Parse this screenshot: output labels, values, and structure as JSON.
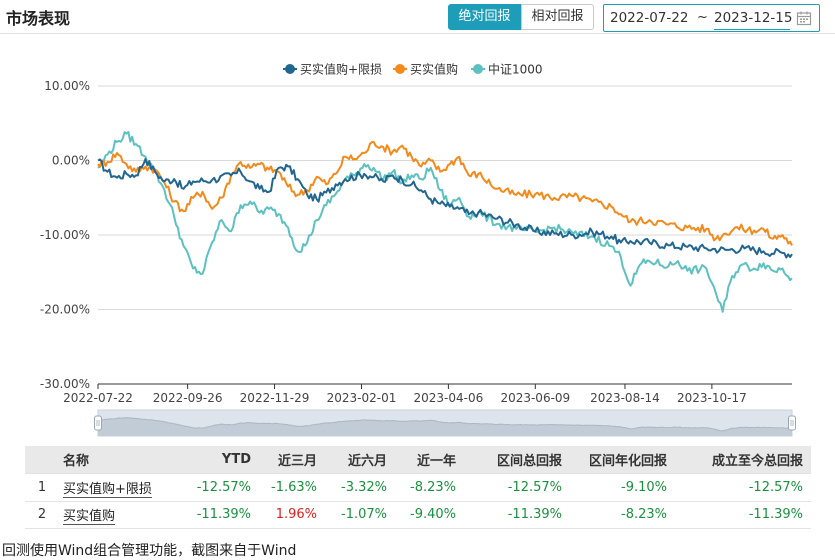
{
  "header": {
    "title": "市场表现"
  },
  "toggle": {
    "absolute_label": "绝对回报",
    "relative_label": "相对回报",
    "active": "absolute"
  },
  "date_range": {
    "start": "2022-07-22",
    "separator": "~",
    "end": "2023-12-15"
  },
  "colors": {
    "accent": "#1e9db8",
    "series1": "#22668f",
    "series2": "#f28a1c",
    "series3": "#5cc1c0",
    "negative": "#1b9040",
    "positive": "#e0201d"
  },
  "chart_data": {
    "type": "line",
    "title": "",
    "xlabel": "",
    "ylabel": "",
    "ylim": [
      -30,
      10
    ],
    "yticks": [
      10,
      0,
      -10,
      -20,
      -30
    ],
    "ytick_labels": [
      "10.00%",
      "0.00%",
      "-10.00%",
      "-20.00%",
      "-30.00%"
    ],
    "xtick_labels": [
      "2022-07-22",
      "2022-09-26",
      "2022-11-29",
      "2023-02-01",
      "2023-04-06",
      "2023-06-09",
      "2023-08-14",
      "2023-10-17"
    ],
    "xticks": [
      "2022-07-22",
      "2022-09-26",
      "2022-11-29",
      "2023-02-01",
      "2023-04-06",
      "2023-06-09",
      "2023-08-14",
      "2023-10-17"
    ],
    "xlim": [
      "2022-07-22",
      "2023-12-15"
    ],
    "legend_position": "top-center",
    "grid": "horizontal",
    "series": [
      {
        "name": "买实值购+限损",
        "color": "#22668f",
        "points": [
          [
            "2022-07-22",
            0.0
          ],
          [
            "2022-07-29",
            -1.5
          ],
          [
            "2022-08-05",
            -2.3
          ],
          [
            "2022-08-12",
            -1.8
          ],
          [
            "2022-08-19",
            -2.0
          ],
          [
            "2022-08-26",
            0.2
          ],
          [
            "2022-09-02",
            -1.5
          ],
          [
            "2022-09-09",
            -2.8
          ],
          [
            "2022-09-16",
            -2.5
          ],
          [
            "2022-09-23",
            -3.8
          ],
          [
            "2022-09-30",
            -2.8
          ],
          [
            "2022-10-14",
            -2.6
          ],
          [
            "2022-10-28",
            -2.0
          ],
          [
            "2022-11-04",
            -1.5
          ],
          [
            "2022-11-11",
            -2.8
          ],
          [
            "2022-11-18",
            -3.8
          ],
          [
            "2022-11-25",
            -4.2
          ],
          [
            "2022-12-02",
            -1.0
          ],
          [
            "2022-12-09",
            -0.8
          ],
          [
            "2022-12-16",
            -2.5
          ],
          [
            "2022-12-23",
            -4.6
          ],
          [
            "2022-12-30",
            -5.2
          ],
          [
            "2023-01-06",
            -4.3
          ],
          [
            "2023-01-13",
            -3.2
          ],
          [
            "2023-01-20",
            -2.5
          ],
          [
            "2023-02-03",
            -1.8
          ],
          [
            "2023-02-10",
            -2.2
          ],
          [
            "2023-02-17",
            -2.8
          ],
          [
            "2023-02-24",
            -2.0
          ],
          [
            "2023-03-03",
            -2.6
          ],
          [
            "2023-03-10",
            -3.2
          ],
          [
            "2023-03-17",
            -4.0
          ],
          [
            "2023-03-24",
            -5.2
          ],
          [
            "2023-03-31",
            -5.8
          ],
          [
            "2023-04-07",
            -6.2
          ],
          [
            "2023-04-14",
            -6.5
          ],
          [
            "2023-04-21",
            -7.2
          ],
          [
            "2023-04-28",
            -7.0
          ],
          [
            "2023-05-12",
            -7.8
          ],
          [
            "2023-05-26",
            -8.6
          ],
          [
            "2023-06-09",
            -9.5
          ],
          [
            "2023-06-23",
            -9.8
          ],
          [
            "2023-07-07",
            -10.0
          ],
          [
            "2023-07-21",
            -9.6
          ],
          [
            "2023-08-04",
            -10.2
          ],
          [
            "2023-08-11",
            -11.0
          ],
          [
            "2023-08-18",
            -10.8
          ],
          [
            "2023-09-01",
            -11.0
          ],
          [
            "2023-09-15",
            -11.4
          ],
          [
            "2023-09-29",
            -11.6
          ],
          [
            "2023-10-13",
            -11.8
          ],
          [
            "2023-10-27",
            -12.0
          ],
          [
            "2023-11-10",
            -11.8
          ],
          [
            "2023-11-24",
            -12.2
          ],
          [
            "2023-12-08",
            -12.4
          ],
          [
            "2023-12-15",
            -12.57
          ]
        ]
      },
      {
        "name": "买实值购",
        "color": "#f28a1c",
        "points": [
          [
            "2022-07-22",
            -0.5
          ],
          [
            "2022-07-29",
            -0.2
          ],
          [
            "2022-08-05",
            1.0
          ],
          [
            "2022-08-12",
            -0.5
          ],
          [
            "2022-08-19",
            -1.5
          ],
          [
            "2022-08-26",
            -0.8
          ],
          [
            "2022-09-02",
            -1.2
          ],
          [
            "2022-09-09",
            -3.0
          ],
          [
            "2022-09-16",
            -5.5
          ],
          [
            "2022-09-23",
            -6.8
          ],
          [
            "2022-09-30",
            -5.0
          ],
          [
            "2022-10-07",
            -4.2
          ],
          [
            "2022-10-14",
            -6.5
          ],
          [
            "2022-10-21",
            -5.0
          ],
          [
            "2022-10-28",
            -2.0
          ],
          [
            "2022-11-04",
            -0.2
          ],
          [
            "2022-11-11",
            -1.0
          ],
          [
            "2022-11-18",
            -0.5
          ],
          [
            "2022-11-25",
            -1.2
          ],
          [
            "2022-12-02",
            -1.5
          ],
          [
            "2022-12-09",
            -3.5
          ],
          [
            "2022-12-16",
            -4.6
          ],
          [
            "2022-12-23",
            -4.0
          ],
          [
            "2022-12-30",
            -2.2
          ],
          [
            "2023-01-06",
            -3.2
          ],
          [
            "2023-01-13",
            -1.8
          ],
          [
            "2023-01-20",
            0.5
          ],
          [
            "2023-01-27",
            0.2
          ],
          [
            "2023-02-03",
            1.0
          ],
          [
            "2023-02-10",
            2.5
          ],
          [
            "2023-02-17",
            1.8
          ],
          [
            "2023-02-24",
            1.2
          ],
          [
            "2023-03-03",
            2.0
          ],
          [
            "2023-03-10",
            0.5
          ],
          [
            "2023-03-17",
            -0.8
          ],
          [
            "2023-03-24",
            0.0
          ],
          [
            "2023-03-31",
            -1.5
          ],
          [
            "2023-04-07",
            -0.5
          ],
          [
            "2023-04-14",
            0.5
          ],
          [
            "2023-04-21",
            -2.0
          ],
          [
            "2023-04-28",
            -1.8
          ],
          [
            "2023-05-12",
            -3.8
          ],
          [
            "2023-05-26",
            -4.6
          ],
          [
            "2023-06-09",
            -4.5
          ],
          [
            "2023-06-23",
            -5.0
          ],
          [
            "2023-07-07",
            -4.8
          ],
          [
            "2023-07-21",
            -5.5
          ],
          [
            "2023-08-04",
            -6.2
          ],
          [
            "2023-08-11",
            -7.2
          ],
          [
            "2023-08-18",
            -8.2
          ],
          [
            "2023-09-01",
            -8.0
          ],
          [
            "2023-09-15",
            -8.6
          ],
          [
            "2023-09-29",
            -9.0
          ],
          [
            "2023-10-13",
            -9.2
          ],
          [
            "2023-10-20",
            -10.5
          ],
          [
            "2023-10-27",
            -9.8
          ],
          [
            "2023-11-03",
            -9.0
          ],
          [
            "2023-11-17",
            -9.4
          ],
          [
            "2023-11-24",
            -9.2
          ],
          [
            "2023-12-01",
            -10.5
          ],
          [
            "2023-12-08",
            -10.0
          ],
          [
            "2023-12-15",
            -11.39
          ]
        ]
      },
      {
        "name": "中证1000",
        "color": "#5cc1c0",
        "points": [
          [
            "2022-07-22",
            -1.0
          ],
          [
            "2022-07-29",
            0.8
          ],
          [
            "2022-08-05",
            2.5
          ],
          [
            "2022-08-12",
            3.6
          ],
          [
            "2022-08-19",
            2.2
          ],
          [
            "2022-08-26",
            0.5
          ],
          [
            "2022-09-02",
            -1.5
          ],
          [
            "2022-09-09",
            -4.0
          ],
          [
            "2022-09-16",
            -7.5
          ],
          [
            "2022-09-23",
            -11.5
          ],
          [
            "2022-09-30",
            -14.5
          ],
          [
            "2022-10-07",
            -15.2
          ],
          [
            "2022-10-14",
            -11.0
          ],
          [
            "2022-10-21",
            -8.0
          ],
          [
            "2022-10-28",
            -9.5
          ],
          [
            "2022-11-04",
            -6.0
          ],
          [
            "2022-11-11",
            -5.5
          ],
          [
            "2022-11-18",
            -7.0
          ],
          [
            "2022-11-25",
            -6.5
          ],
          [
            "2022-12-02",
            -7.2
          ],
          [
            "2022-12-09",
            -9.0
          ],
          [
            "2022-12-16",
            -12.2
          ],
          [
            "2022-12-23",
            -11.0
          ],
          [
            "2022-12-30",
            -8.0
          ],
          [
            "2023-01-06",
            -6.0
          ],
          [
            "2023-01-13",
            -4.5
          ],
          [
            "2023-01-20",
            -2.5
          ],
          [
            "2023-01-27",
            -2.0
          ],
          [
            "2023-02-03",
            -0.5
          ],
          [
            "2023-02-10",
            -1.0
          ],
          [
            "2023-02-17",
            -2.5
          ],
          [
            "2023-02-24",
            -1.5
          ],
          [
            "2023-03-03",
            -3.0
          ],
          [
            "2023-03-10",
            -2.0
          ],
          [
            "2023-03-17",
            -2.5
          ],
          [
            "2023-03-24",
            -1.0
          ],
          [
            "2023-03-31",
            -4.0
          ],
          [
            "2023-04-07",
            -6.0
          ],
          [
            "2023-04-14",
            -5.0
          ],
          [
            "2023-04-21",
            -7.5
          ],
          [
            "2023-04-28",
            -7.0
          ],
          [
            "2023-05-12",
            -8.5
          ],
          [
            "2023-05-26",
            -9.2
          ],
          [
            "2023-06-09",
            -9.6
          ],
          [
            "2023-06-23",
            -9.0
          ],
          [
            "2023-07-07",
            -9.8
          ],
          [
            "2023-07-21",
            -10.2
          ],
          [
            "2023-08-04",
            -11.5
          ],
          [
            "2023-08-11",
            -13.0
          ],
          [
            "2023-08-18",
            -16.8
          ],
          [
            "2023-08-25",
            -14.0
          ],
          [
            "2023-09-01",
            -13.5
          ],
          [
            "2023-09-15",
            -14.2
          ],
          [
            "2023-09-22",
            -13.5
          ],
          [
            "2023-09-29",
            -14.8
          ],
          [
            "2023-10-13",
            -14.5
          ],
          [
            "2023-10-20",
            -17.8
          ],
          [
            "2023-10-25",
            -20.3
          ],
          [
            "2023-11-01",
            -15.5
          ],
          [
            "2023-11-08",
            -14.0
          ],
          [
            "2023-11-17",
            -14.5
          ],
          [
            "2023-11-24",
            -13.8
          ],
          [
            "2023-12-01",
            -14.8
          ],
          [
            "2023-12-08",
            -14.5
          ],
          [
            "2023-12-15",
            -15.8
          ]
        ]
      }
    ]
  },
  "table": {
    "headers": [
      "名称",
      "YTD",
      "近三月",
      "近六月",
      "近一年",
      "区间总回报",
      "区间年化回报",
      "成立至今总回报"
    ],
    "rows": [
      {
        "index": "1",
        "name": "买实值购+限损",
        "values": [
          "-12.57%",
          "-1.63%",
          "-3.32%",
          "-8.23%",
          "-12.57%",
          "-9.10%",
          "-12.57%"
        ]
      },
      {
        "index": "2",
        "name": "买实值购",
        "values": [
          "-11.39%",
          "1.96%",
          "-1.07%",
          "-9.40%",
          "-11.39%",
          "-8.23%",
          "-11.39%"
        ]
      }
    ]
  },
  "footer": {
    "note": "回测使用Wind组合管理功能，截图来自于Wind"
  }
}
